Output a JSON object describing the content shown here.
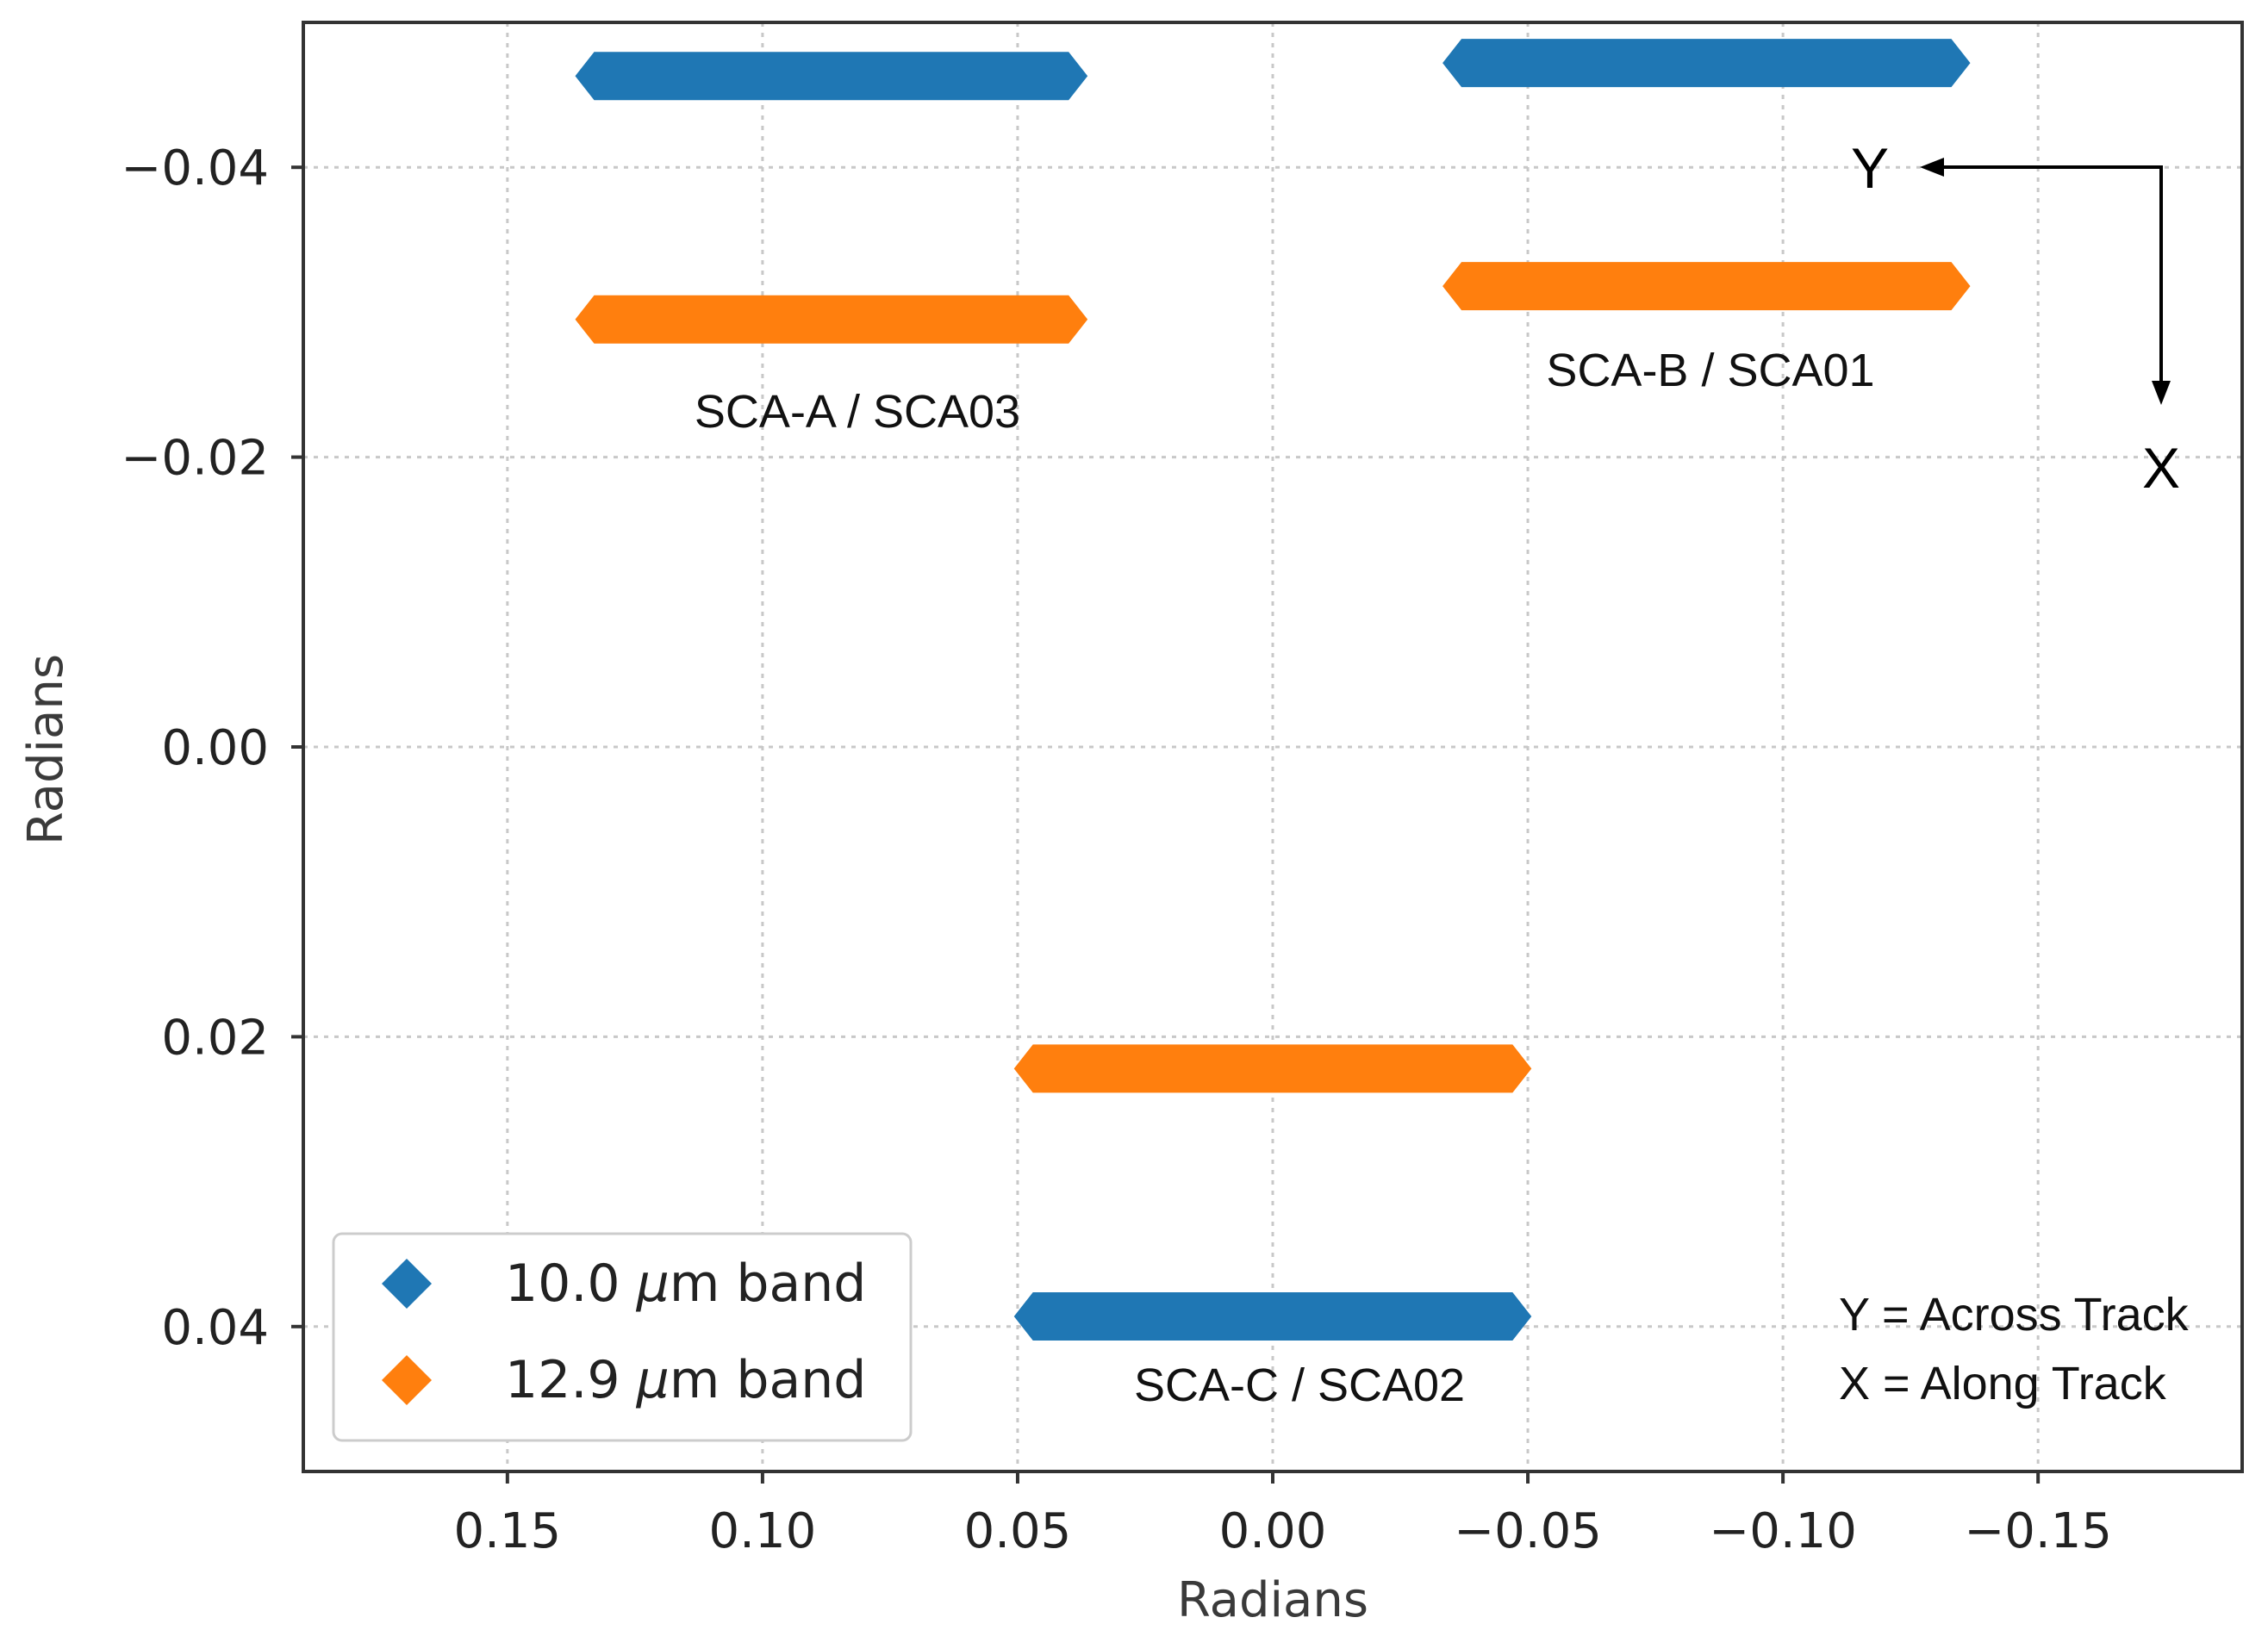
{
  "chart_data": {
    "type": "scatter",
    "title": "",
    "xlabel": "Radians",
    "ylabel": "Radians",
    "xlim": [
      0.19,
      -0.19
    ],
    "ylim": [
      -0.05,
      0.05
    ],
    "x_ticks": [
      0.15,
      0.1,
      0.05,
      0.0,
      -0.05,
      -0.1,
      -0.15
    ],
    "x_tick_labels": [
      "0.15",
      "0.10",
      "0.05",
      "0.00",
      "−0.05",
      "−0.10",
      "−0.15"
    ],
    "y_ticks": [
      -0.04,
      -0.02,
      0.0,
      0.02,
      0.04
    ],
    "y_tick_labels": [
      "−0.04",
      "−0.02",
      "0.00",
      "0.02",
      "0.04"
    ],
    "grid": true,
    "legend_position": "lower-left",
    "series": [
      {
        "name": "10.0 µm band",
        "legend_prefix": "10.0 ",
        "legend_mu": "µ",
        "legend_suffix": "m band",
        "color": "#1f77b4",
        "segments": [
          {
            "x_start": 0.133,
            "x_end": 0.04,
            "y": -0.0463
          },
          {
            "x_start": -0.037,
            "x_end": -0.133,
            "y": -0.0472
          },
          {
            "x_start": 0.047,
            "x_end": -0.047,
            "y": 0.0393
          }
        ]
      },
      {
        "name": "12.9 µm band",
        "legend_prefix": "12.9 ",
        "legend_mu": "µ",
        "legend_suffix": "m band",
        "color": "#ff7f0e",
        "segments": [
          {
            "x_start": 0.133,
            "x_end": 0.04,
            "y": -0.0295
          },
          {
            "x_start": -0.037,
            "x_end": -0.133,
            "y": -0.0318
          },
          {
            "x_start": 0.047,
            "x_end": -0.047,
            "y": 0.0222
          }
        ]
      }
    ],
    "annotations": {
      "sca_a": "SCA-A / SCA03",
      "sca_b": "SCA-B / SCA01",
      "sca_c": "SCA-C / SCA02",
      "axis_y_letter": "Y",
      "axis_x_letter": "X",
      "y_def": "Y = Across Track",
      "x_def": "X = Along Track"
    }
  }
}
